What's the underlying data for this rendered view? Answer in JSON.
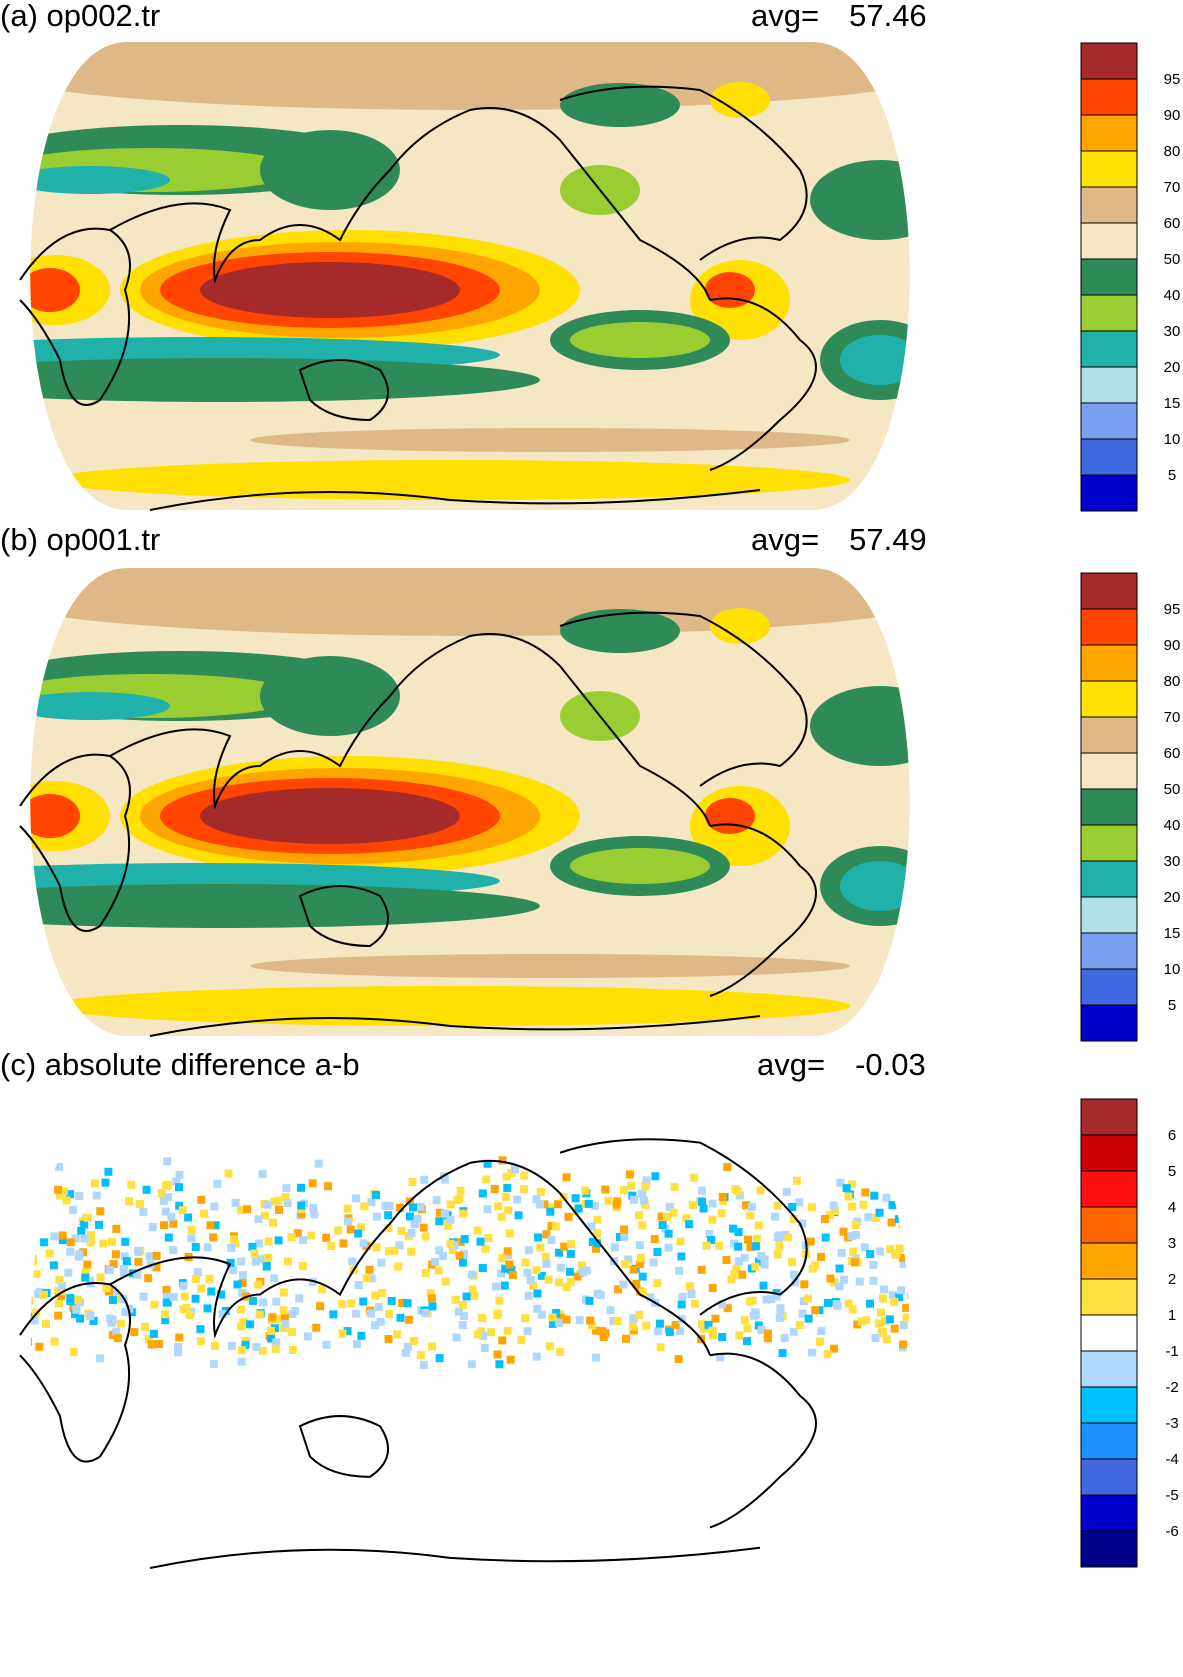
{
  "panels": [
    {
      "id": "a",
      "title": "(a) op002.tr",
      "avg_label": "avg=",
      "avg_value": "57.46",
      "colorbar": {
        "labels": [
          "95",
          "90",
          "80",
          "70",
          "60",
          "50",
          "40",
          "30",
          "20",
          "15",
          "10",
          "5"
        ],
        "colors": [
          "#A52A2A",
          "#FF4500",
          "#FFA500",
          "#FFE000",
          "#DEB887",
          "#F5E6C4",
          "#2E8B57",
          "#9ACD32",
          "#20B2AA",
          "#B0E0E6",
          "#7B9FF0",
          "#4169E1",
          "#0000CD"
        ]
      }
    },
    {
      "id": "b",
      "title": "(b) op001.tr",
      "avg_label": "avg=",
      "avg_value": "57.49",
      "colorbar": {
        "labels": [
          "95",
          "90",
          "80",
          "70",
          "60",
          "50",
          "40",
          "30",
          "20",
          "15",
          "10",
          "5"
        ],
        "colors": [
          "#A52A2A",
          "#FF4500",
          "#FFA500",
          "#FFE000",
          "#DEB887",
          "#F5E6C4",
          "#2E8B57",
          "#9ACD32",
          "#20B2AA",
          "#B0E0E6",
          "#7B9FF0",
          "#4169E1",
          "#0000CD"
        ]
      }
    },
    {
      "id": "c",
      "title": "(c) absolute difference a-b",
      "avg_label": "avg=",
      "avg_value": "-0.03",
      "colorbar": {
        "labels": [
          "6",
          "5",
          "4",
          "3",
          "2",
          "1",
          "-1",
          "-2",
          "-3",
          "-4",
          "-5",
          "-6"
        ],
        "colors": [
          "#A52A2A",
          "#CC0000",
          "#FF1010",
          "#FF6600",
          "#FFA500",
          "#FFE040",
          "#FFFFFF",
          "#B0D8FF",
          "#00BFFF",
          "#1E90FF",
          "#4169E1",
          "#0000CD",
          "#00008B"
        ]
      }
    }
  ]
}
